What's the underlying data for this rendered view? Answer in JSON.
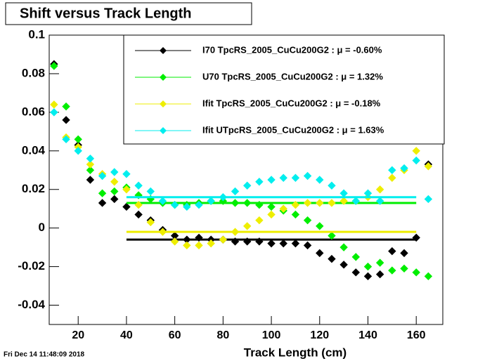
{
  "chart_data": {
    "type": "scatter",
    "title": "Shift versus Track Length",
    "x_label": "Track Length (cm)",
    "timestamp": "Fri Dec 14 11:48:09 2018",
    "xlim": [
      8,
      171
    ],
    "ylim": [
      -0.05,
      0.1
    ],
    "xticks": [
      20,
      40,
      60,
      80,
      100,
      120,
      140,
      160
    ],
    "yticks": [
      -0.04,
      -0.02,
      0,
      0.02,
      0.04,
      0.06,
      0.08,
      0.1
    ],
    "fit_range": [
      40,
      160
    ],
    "legend": "top-right",
    "x": [
      10,
      15,
      20,
      25,
      30,
      35,
      40,
      45,
      50,
      55,
      60,
      65,
      70,
      75,
      80,
      85,
      90,
      95,
      100,
      105,
      110,
      115,
      120,
      125,
      130,
      135,
      140,
      145,
      150,
      155,
      160,
      165
    ],
    "series": [
      {
        "name": "I70  TpcRS_2005_CuCu200G2 : μ = -0.60%",
        "color": "#000000",
        "mean_line": -0.006,
        "values": [
          0.085,
          0.056,
          0.043,
          0.025,
          0.013,
          0.015,
          0.011,
          0.007,
          0.004,
          -0.001,
          -0.004,
          -0.006,
          -0.005,
          -0.006,
          -0.006,
          -0.007,
          -0.007,
          -0.007,
          -0.008,
          -0.008,
          -0.008,
          -0.009,
          -0.013,
          -0.016,
          -0.019,
          -0.023,
          -0.025,
          -0.024,
          -0.012,
          -0.013,
          -0.005,
          0.033
        ]
      },
      {
        "name": "U70  TpcRS_2005_CuCu200G2 : μ =  1.32%",
        "color": "#00ee00",
        "mean_line": 0.013,
        "values": [
          0.084,
          0.063,
          0.046,
          0.03,
          0.018,
          0.019,
          0.021,
          0.017,
          0.015,
          0.013,
          0.012,
          0.012,
          0.013,
          0.014,
          0.014,
          0.013,
          0.013,
          0.012,
          0.011,
          0.009,
          0.007,
          0.004,
          0.001,
          -0.004,
          -0.01,
          -0.015,
          -0.02,
          -0.018,
          -0.022,
          -0.021,
          -0.023,
          -0.025
        ]
      },
      {
        "name": "Ifit  TpcRS_2005_CuCu200G2 : μ = -0.18%",
        "color": "#eeee00",
        "mean_line": -0.002,
        "values": [
          0.064,
          0.047,
          0.042,
          0.033,
          0.028,
          0.024,
          0.02,
          0.012,
          0.003,
          -0.002,
          -0.007,
          -0.009,
          -0.009,
          -0.008,
          -0.006,
          -0.002,
          0.001,
          0.004,
          0.007,
          0.01,
          0.012,
          0.013,
          0.013,
          0.013,
          0.014,
          0.014,
          0.016,
          0.02,
          0.026,
          0.03,
          0.04,
          0.032
        ]
      },
      {
        "name": "Ifit UTpcRS_2005_CuCu200G2 : μ =  1.63%",
        "color": "#00eeee",
        "mean_line": 0.016,
        "values": [
          0.06,
          0.046,
          0.04,
          0.036,
          0.027,
          0.029,
          0.028,
          0.022,
          0.019,
          0.014,
          0.012,
          0.011,
          0.012,
          0.014,
          0.016,
          0.019,
          0.022,
          0.024,
          0.025,
          0.026,
          0.026,
          0.027,
          0.025,
          0.022,
          0.018,
          0.014,
          0.018,
          0.014,
          0.03,
          0.031,
          0.035,
          0.015
        ]
      }
    ]
  }
}
